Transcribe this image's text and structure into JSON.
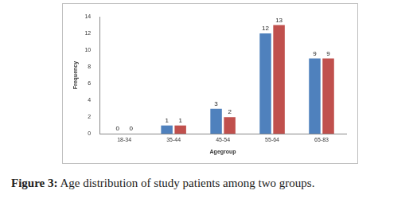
{
  "chart_data": {
    "type": "bar",
    "x_label": "Agegroup",
    "y_label": "Frequency",
    "categories": [
      "18-34",
      "35-44",
      "45-54",
      "55-64",
      "65-83"
    ],
    "series": [
      {
        "color": "#4f81bd",
        "values": [
          0,
          1,
          3,
          12,
          9
        ]
      },
      {
        "color": "#c0504d",
        "values": [
          0,
          1,
          2,
          13,
          9
        ]
      }
    ],
    "ylim": [
      0,
      14
    ],
    "yticks": [
      0,
      2,
      4,
      6,
      8,
      10,
      12,
      14
    ],
    "grid": false,
    "data_labels": true,
    "caption": {
      "label": "Figure 3:",
      "text": "Age distribution of study patients among two groups."
    }
  }
}
